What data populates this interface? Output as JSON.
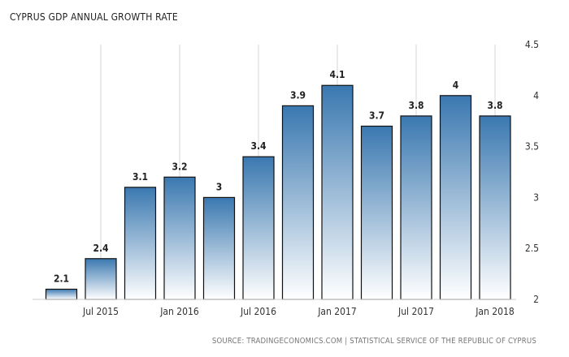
{
  "title": "CYPRUS GDP ANNUAL GROWTH RATE",
  "source": "SOURCE: TRADINGECONOMICS.COM  |  STATISTICAL SERVICE OF THE REPUBLIC OF CYPRUS",
  "chart_data": {
    "type": "bar",
    "title": "CYPRUS GDP ANNUAL GROWTH RATE",
    "categories": [
      "2015-Q2",
      "2015-Q3",
      "2015-Q4",
      "2016-Q1",
      "2016-Q2",
      "2016-Q3",
      "2016-Q4",
      "2017-Q1",
      "2017-Q2",
      "2017-Q3",
      "2017-Q4",
      "2018-Q1"
    ],
    "values": [
      2.1,
      2.4,
      3.1,
      3.2,
      3.0,
      3.4,
      3.9,
      4.1,
      3.7,
      3.8,
      4.0,
      3.8
    ],
    "value_labels": [
      "2.1",
      "2.4",
      "3.1",
      "3.2",
      "3",
      "3.4",
      "3.9",
      "4.1",
      "3.7",
      "3.8",
      "4",
      "3.8"
    ],
    "x_tick_labels": [
      "Jul 2015",
      "Jan 2016",
      "Jul 2016",
      "Jan 2017",
      "Jul 2017",
      "Jan 2018"
    ],
    "y_tick_labels": [
      "2",
      "2.5",
      "3",
      "3.5",
      "4",
      "4.5"
    ],
    "ylim": [
      2,
      4.5
    ],
    "y_axis_side": "right",
    "grid": "vertical",
    "colors": {
      "bar_top": "#3a78b0",
      "bar_bottom": "#ffffff",
      "bar_border": "#111111",
      "grid": "#d6d6d6"
    }
  }
}
